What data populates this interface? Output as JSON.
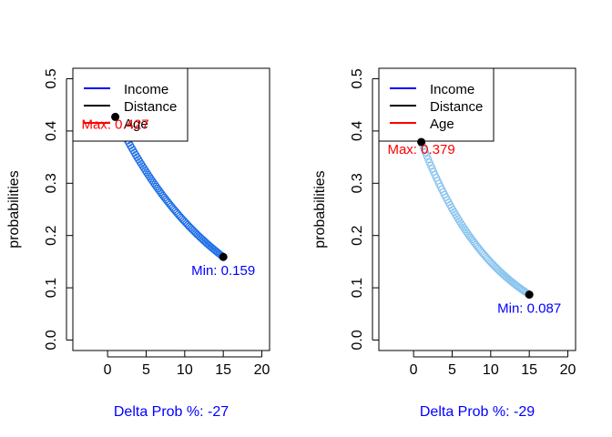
{
  "chart_data": [
    {
      "type": "scatter",
      "title": "",
      "xlabel": "Delta Prob %: -27",
      "ylabel": "probabilities",
      "xlim": [
        -4.5,
        21
      ],
      "ylim": [
        -0.02,
        0.52
      ],
      "x_ticks": [
        0,
        5,
        10,
        15,
        20
      ],
      "y_ticks": [
        0.0,
        0.1,
        0.2,
        0.3,
        0.4,
        0.5
      ],
      "x_tick_labels": [
        "0",
        "5",
        "10",
        "15",
        "20"
      ],
      "y_tick_labels": [
        "0.0",
        "0.1",
        "0.2",
        "0.3",
        "0.4",
        "0.5"
      ],
      "series_color": "#1e6fe6",
      "curve": {
        "x_start": 1,
        "x_end": 15,
        "y_start": 0.427,
        "y_end": 0.159,
        "decay": 0.07,
        "point_count": 80
      },
      "max_point": {
        "x": 1,
        "y": 0.427,
        "label": "Max: 0.427"
      },
      "min_point": {
        "x": 15,
        "y": 0.159,
        "label": "Min: 0.159"
      },
      "legend": {
        "position": "top-left",
        "entries": [
          {
            "label": "Income",
            "color": "#0000ff"
          },
          {
            "label": "Distance",
            "color": "#000000"
          },
          {
            "label": "Age",
            "color": "#ff0000"
          }
        ]
      }
    },
    {
      "type": "scatter",
      "title": "",
      "xlabel": "Delta Prob %: -29",
      "ylabel": "probabilities",
      "xlim": [
        -4.5,
        21
      ],
      "ylim": [
        -0.02,
        0.52
      ],
      "x_ticks": [
        0,
        5,
        10,
        15,
        20
      ],
      "y_ticks": [
        0.0,
        0.1,
        0.2,
        0.3,
        0.4,
        0.5
      ],
      "x_tick_labels": [
        "0",
        "5",
        "10",
        "15",
        "20"
      ],
      "y_tick_labels": [
        "0.0",
        "0.1",
        "0.2",
        "0.3",
        "0.4",
        "0.5"
      ],
      "series_color": "#87c3ef",
      "curve": {
        "x_start": 1,
        "x_end": 15,
        "y_start": 0.379,
        "y_end": 0.087,
        "decay": 0.1,
        "point_count": 80
      },
      "max_point": {
        "x": 1,
        "y": 0.379,
        "label": "Max: 0.379"
      },
      "min_point": {
        "x": 15,
        "y": 0.087,
        "label": "Min: 0.087"
      },
      "legend": {
        "position": "top-left",
        "entries": [
          {
            "label": "Income",
            "color": "#0000ff"
          },
          {
            "label": "Distance",
            "color": "#000000"
          },
          {
            "label": "Age",
            "color": "#ff0000"
          }
        ]
      }
    }
  ]
}
